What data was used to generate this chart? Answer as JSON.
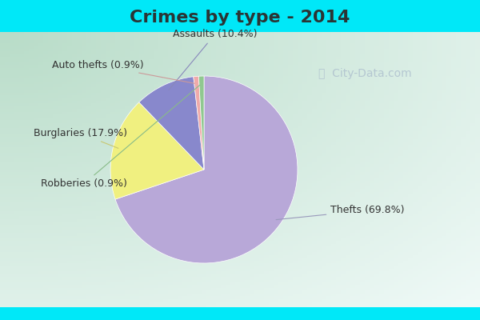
{
  "title": "Crimes by type - 2014",
  "labels": [
    "Thefts",
    "Burglaries",
    "Assaults",
    "Auto thefts",
    "Robberies"
  ],
  "percentages": [
    69.8,
    17.9,
    10.4,
    0.9,
    0.9
  ],
  "colors": [
    "#b8a8d8",
    "#f0f080",
    "#8888cc",
    "#f0aaaa",
    "#90c890"
  ],
  "label_texts": [
    "Thefts (69.8%)",
    "Burglaries (17.9%)",
    "Assaults (10.4%)",
    "Auto thefts (0.9%)",
    "Robberies (0.9%)"
  ],
  "background_cyan": "#00e8f8",
  "background_mint_left": "#b8dcc8",
  "background_center": "#e8f4ee",
  "background_white": "#f0f8f8",
  "title_color": "#2a3535",
  "title_fontsize": 16,
  "label_fontsize": 9,
  "startangle": 90,
  "watermark_color": "#aabbcc",
  "label_color": "#333333"
}
